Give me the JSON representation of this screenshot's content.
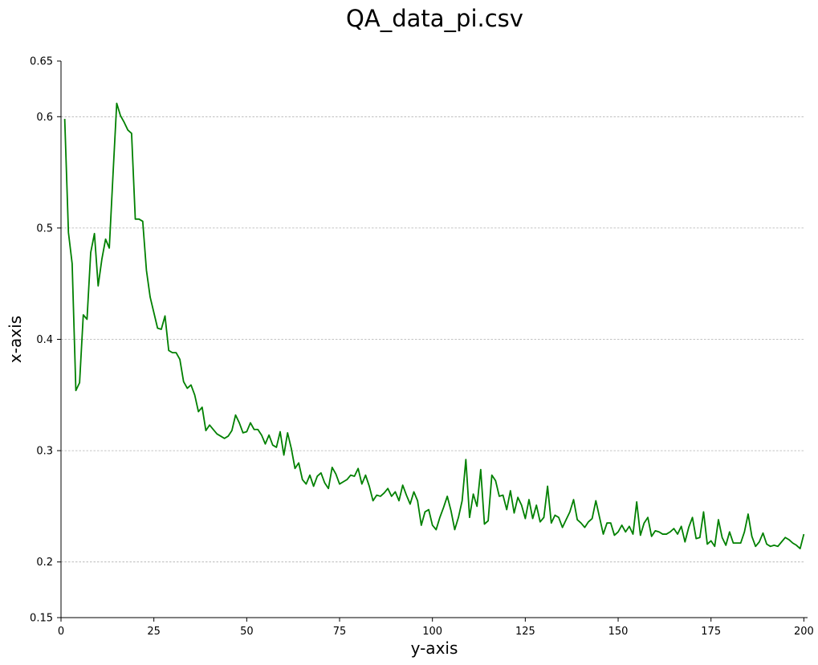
{
  "chart_data": {
    "type": "line",
    "title": "QA_data_pi.csv",
    "xlabel": "y-axis",
    "ylabel": "x-axis",
    "xlim": [
      0,
      201
    ],
    "ylim": [
      0.15,
      0.65
    ],
    "xticks": [
      0,
      25,
      50,
      75,
      100,
      125,
      150,
      175,
      200
    ],
    "xtick_labels": [
      "0",
      "25",
      "50",
      "75",
      "100",
      "125",
      "150",
      "175",
      "200"
    ],
    "yticks": [
      0.15,
      0.2,
      0.3,
      0.4,
      0.5,
      0.6,
      0.65
    ],
    "ytick_labels": [
      "0.15",
      "0.2",
      "0.3",
      "0.4",
      "0.5",
      "0.6",
      "0.65"
    ],
    "grid": "horizontal dashed",
    "line_color": "#008000",
    "grid_color": "#b0b0b0",
    "series": [
      {
        "x": [
          1,
          2,
          3,
          4,
          5,
          6,
          7,
          8,
          9,
          10,
          11,
          12,
          13,
          14,
          15,
          16,
          17,
          18,
          19,
          20,
          21,
          22,
          23,
          24,
          25,
          26,
          27,
          28,
          29,
          30,
          31,
          32,
          33,
          34,
          35,
          36,
          37,
          38,
          39,
          40,
          41,
          42,
          43,
          44,
          45,
          46,
          47,
          48,
          49,
          50,
          51,
          52,
          53,
          54,
          55,
          56,
          57,
          58,
          59,
          60,
          61,
          62,
          63,
          64,
          65,
          66,
          67,
          68,
          69,
          70,
          71,
          72,
          73,
          74,
          75,
          76,
          77,
          78,
          79,
          80,
          81,
          82,
          83,
          84,
          85,
          86,
          87,
          88,
          89,
          90,
          91,
          92,
          93,
          94,
          95,
          96,
          97,
          98,
          99,
          100,
          101,
          102,
          103,
          104,
          105,
          106,
          107,
          108,
          109,
          110,
          111,
          112,
          113,
          114,
          115,
          116,
          117,
          118,
          119,
          120,
          121,
          122,
          123,
          124,
          125,
          126,
          127,
          128,
          129,
          130,
          131,
          132,
          133,
          134,
          135,
          136,
          137,
          138,
          139,
          140,
          141,
          142,
          143,
          144,
          145,
          146,
          147,
          148,
          149,
          150,
          151,
          152,
          153,
          154,
          155,
          156,
          157,
          158,
          159,
          160,
          161,
          162,
          163,
          164,
          165,
          166,
          167,
          168,
          169,
          170,
          171,
          172,
          173,
          174,
          175,
          176,
          177,
          178,
          179,
          180,
          181,
          182,
          183,
          184,
          185,
          186,
          187,
          188,
          189,
          190,
          191,
          192,
          193,
          194,
          195,
          196,
          197,
          198,
          199,
          200
        ],
        "y": [
          0.598,
          0.496,
          0.468,
          0.354,
          0.361,
          0.422,
          0.418,
          0.478,
          0.495,
          0.448,
          0.472,
          0.49,
          0.482,
          0.548,
          0.612,
          0.601,
          0.595,
          0.588,
          0.585,
          0.508,
          0.508,
          0.506,
          0.462,
          0.438,
          0.424,
          0.41,
          0.409,
          0.421,
          0.39,
          0.388,
          0.388,
          0.382,
          0.362,
          0.356,
          0.359,
          0.35,
          0.335,
          0.339,
          0.318,
          0.323,
          0.319,
          0.315,
          0.313,
          0.311,
          0.313,
          0.318,
          0.332,
          0.325,
          0.316,
          0.317,
          0.325,
          0.319,
          0.319,
          0.314,
          0.306,
          0.314,
          0.305,
          0.303,
          0.317,
          0.296,
          0.316,
          0.302,
          0.284,
          0.289,
          0.274,
          0.27,
          0.278,
          0.268,
          0.277,
          0.28,
          0.271,
          0.266,
          0.285,
          0.279,
          0.27,
          0.272,
          0.274,
          0.278,
          0.277,
          0.284,
          0.27,
          0.278,
          0.268,
          0.255,
          0.26,
          0.259,
          0.262,
          0.266,
          0.259,
          0.263,
          0.255,
          0.269,
          0.26,
          0.252,
          0.263,
          0.255,
          0.233,
          0.245,
          0.247,
          0.233,
          0.229,
          0.24,
          0.249,
          0.259,
          0.246,
          0.229,
          0.24,
          0.255,
          0.292,
          0.24,
          0.261,
          0.25,
          0.283,
          0.234,
          0.237,
          0.278,
          0.273,
          0.259,
          0.26,
          0.247,
          0.264,
          0.244,
          0.258,
          0.251,
          0.239,
          0.256,
          0.239,
          0.251,
          0.236,
          0.24,
          0.268,
          0.235,
          0.242,
          0.24,
          0.231,
          0.238,
          0.245,
          0.256,
          0.238,
          0.235,
          0.231,
          0.236,
          0.239,
          0.255,
          0.24,
          0.225,
          0.235,
          0.235,
          0.224,
          0.227,
          0.233,
          0.227,
          0.232,
          0.225,
          0.254,
          0.224,
          0.235,
          0.24,
          0.223,
          0.228,
          0.227,
          0.225,
          0.225,
          0.227,
          0.23,
          0.225,
          0.232,
          0.218,
          0.231,
          0.24,
          0.221,
          0.222,
          0.245,
          0.216,
          0.219,
          0.214,
          0.238,
          0.222,
          0.215,
          0.227,
          0.217,
          0.217,
          0.217,
          0.227,
          0.243,
          0.223,
          0.214,
          0.218,
          0.226,
          0.216,
          0.214,
          0.215,
          0.214,
          0.218,
          0.222,
          0.22,
          0.217,
          0.215,
          0.212,
          0.225
        ]
      }
    ]
  }
}
